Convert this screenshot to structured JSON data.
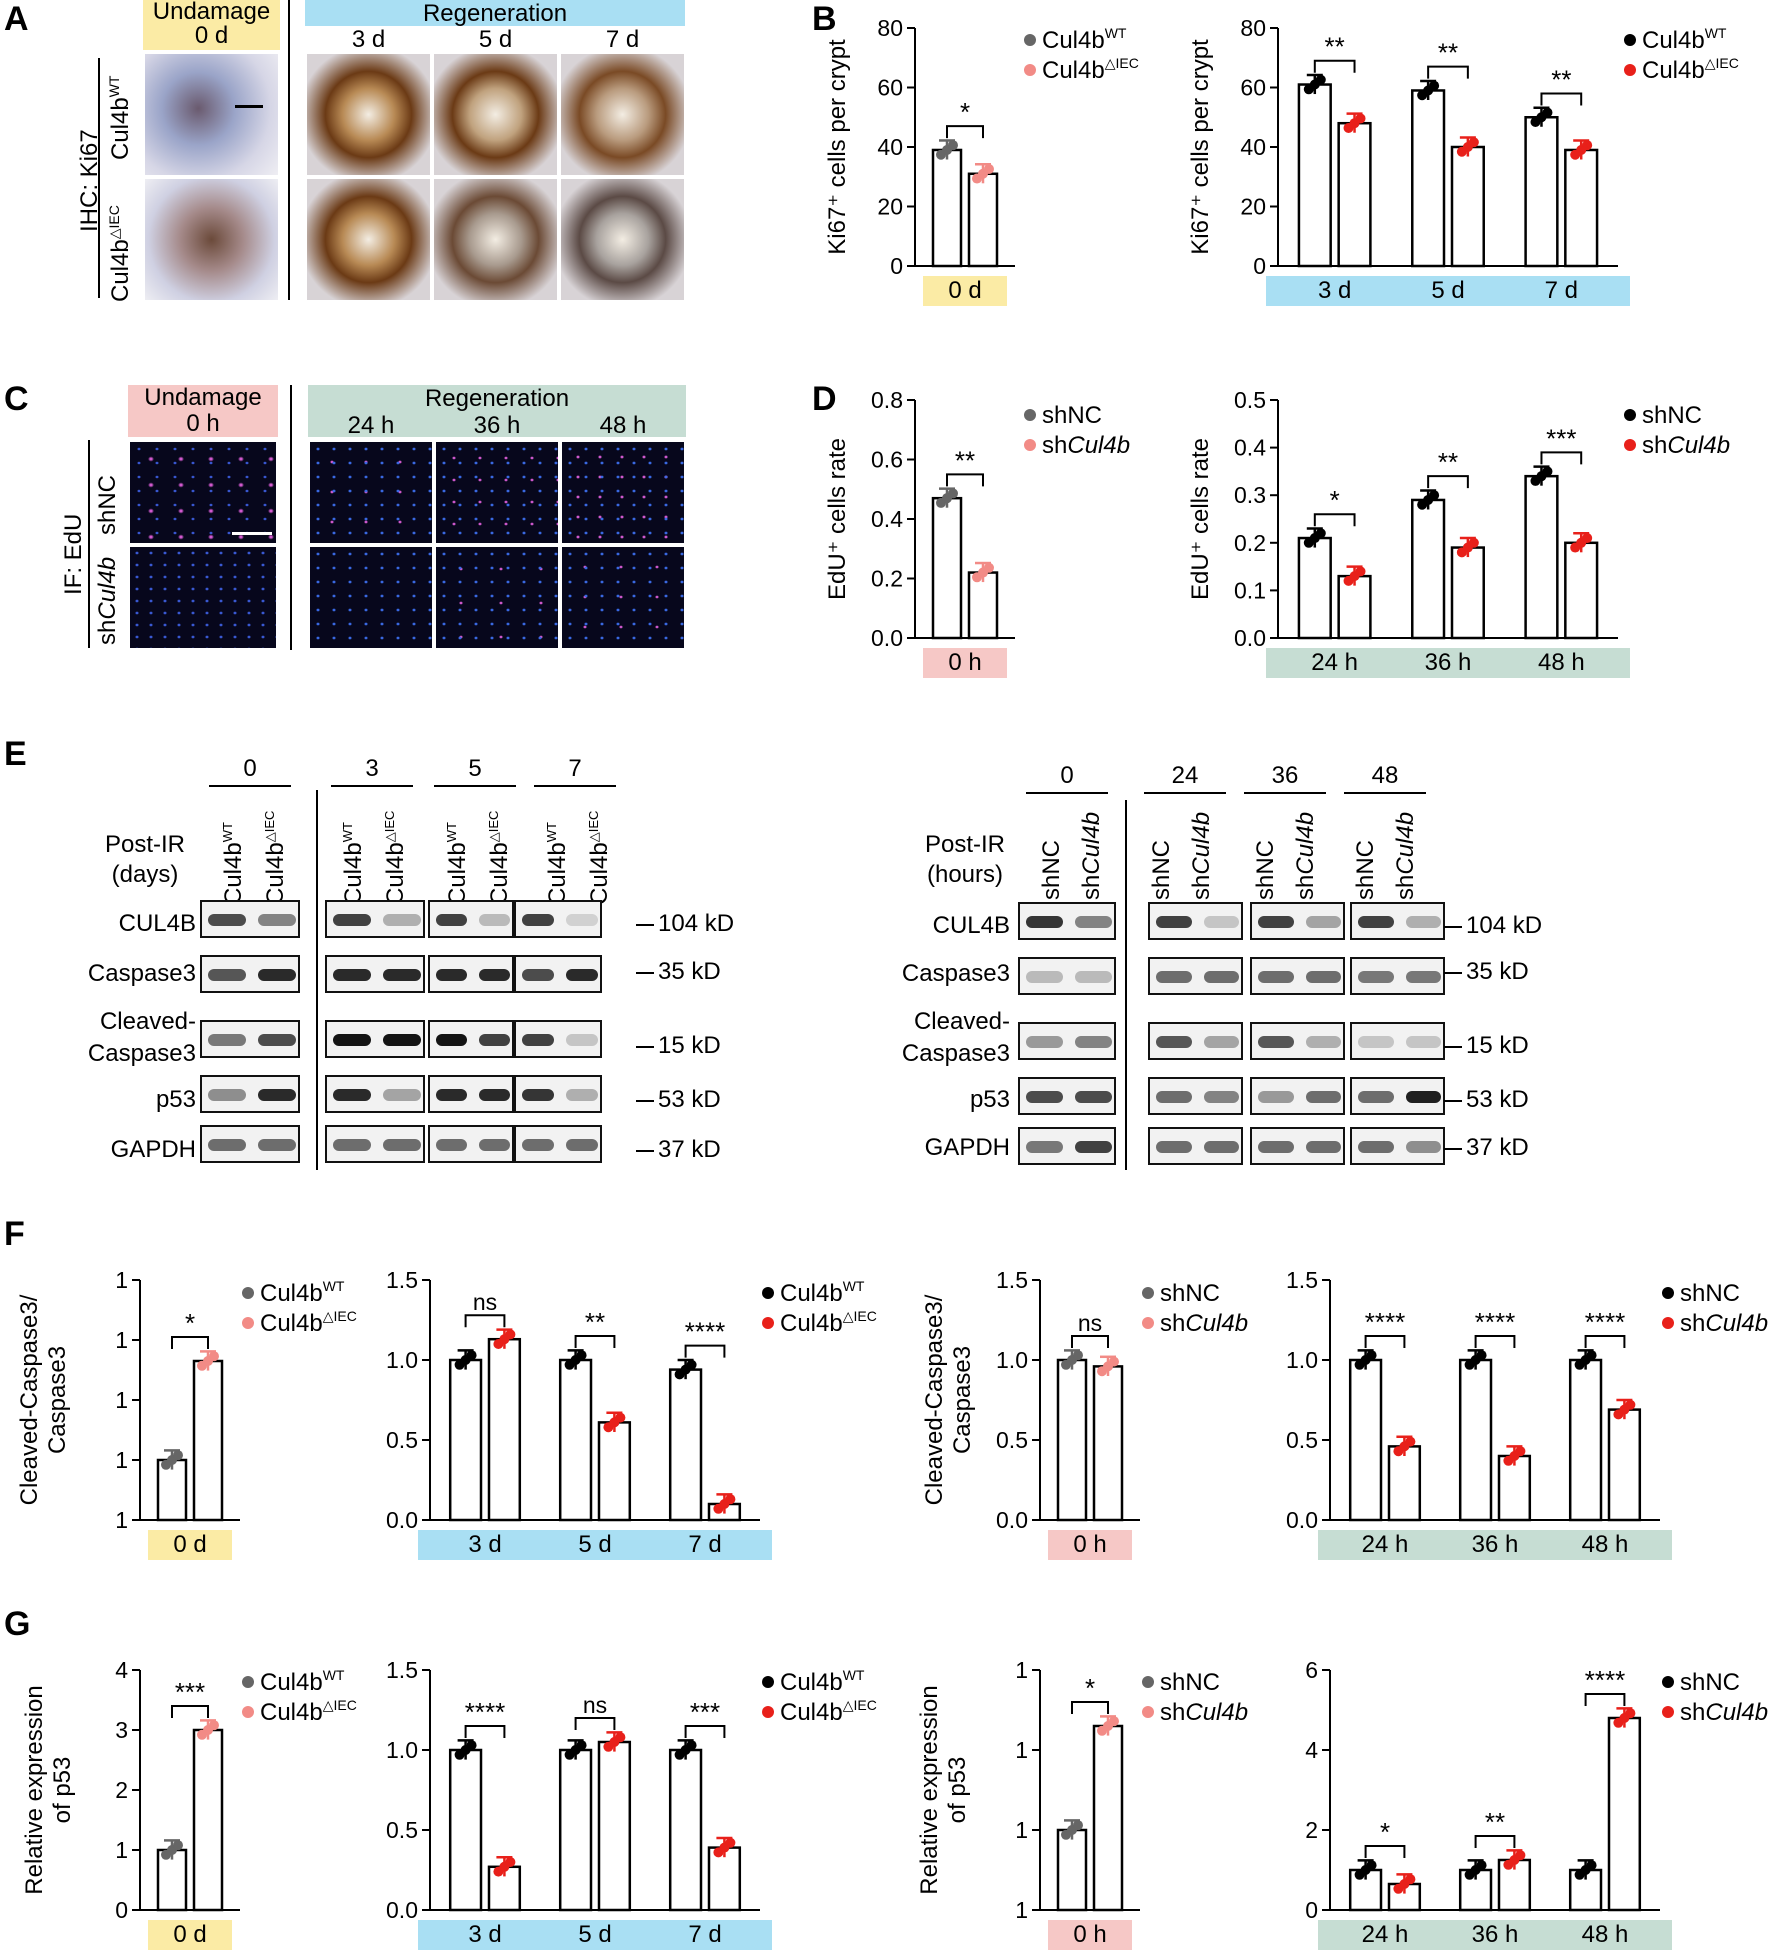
{
  "panels": {
    "A": "A",
    "B": "B",
    "C": "C",
    "D": "D",
    "E": "E",
    "F": "F",
    "G": "G"
  },
  "colors": {
    "wt": "#000000",
    "wt_light": "#666666",
    "ko": "#e8201a",
    "ko_light": "#f28b86",
    "yellow": "#fbeba5",
    "blue": "#a9dff3",
    "pink": "#f6c8c6",
    "green": "#c6ddd3"
  },
  "panel_a": {
    "left_header": "Undamage",
    "left_time": "0 d",
    "right_header": "Regeneration",
    "times": [
      "3 d",
      "5 d",
      "7 d"
    ],
    "stain": "IHC: Ki67",
    "row1": "Cul4b",
    "row1_sup": "WT",
    "row2": "Cul4b",
    "row2_sup": "△IEC"
  },
  "panel_c": {
    "left_header": "Undamage",
    "left_time": "0 h",
    "right_header": "Regeneration",
    "times": [
      "24 h",
      "36 h",
      "48 h"
    ],
    "stain": "IF: EdU",
    "row1": "shNC",
    "row2": "shCul4b"
  },
  "panel_e": {
    "left": {
      "groups": [
        "0",
        "3",
        "5",
        "7"
      ],
      "post": "Post-IR",
      "unit": "(days)",
      "lanes": [
        "Cul4b",
        "Cul4b"
      ],
      "lane_sups": [
        "WT",
        "△IEC"
      ]
    },
    "right": {
      "groups": [
        "0",
        "24",
        "36",
        "48"
      ],
      "post": "Post-IR",
      "unit": "(hours)",
      "lanes": [
        "shNC",
        "shCul4b"
      ]
    },
    "rows": [
      "CUL4B",
      "Caspase3",
      "Cleaved-",
      "Caspase3",
      "p53",
      "GAPDH"
    ],
    "kd": [
      "104 kD",
      "35 kD",
      "15 kD",
      "53 kD",
      "37 kD"
    ]
  },
  "legends": {
    "mouse": [
      "Cul4b",
      "Cul4b"
    ],
    "mouse_sups": [
      "WT",
      "△IEC"
    ],
    "cell": [
      "shNC",
      "sh",
      "Cul4b"
    ]
  },
  "chart_data": [
    {
      "id": "B1",
      "type": "bar",
      "categories": [
        "0 d"
      ],
      "ylabel": "Ki67⁺ cells per crypt",
      "ylim": [
        0,
        80
      ],
      "yticks": [
        0,
        20,
        40,
        60,
        80
      ],
      "series": [
        {
          "name": "Cul4bWT",
          "values": [
            39
          ]
        },
        {
          "name": "Cul4b△IEC",
          "values": [
            31
          ]
        }
      ],
      "sig": [
        "*"
      ]
    },
    {
      "id": "B2",
      "type": "bar",
      "categories": [
        "3 d",
        "5 d",
        "7 d"
      ],
      "ylabel": "Ki67⁺ cells per crypt",
      "ylim": [
        0,
        80
      ],
      "yticks": [
        0,
        20,
        40,
        60,
        80
      ],
      "series": [
        {
          "name": "Cul4bWT",
          "values": [
            61,
            59,
            50
          ]
        },
        {
          "name": "Cul4b△IEC",
          "values": [
            48,
            40,
            39
          ]
        }
      ],
      "sig": [
        "**",
        "**",
        "**"
      ]
    },
    {
      "id": "D1",
      "type": "bar",
      "categories": [
        "0 h"
      ],
      "ylabel": "EdU⁺ cells rate",
      "ylim": [
        0,
        0.8
      ],
      "yticks": [
        0.0,
        0.2,
        0.4,
        0.6,
        0.8
      ],
      "series": [
        {
          "name": "shNC",
          "values": [
            0.47
          ]
        },
        {
          "name": "shCul4b",
          "values": [
            0.22
          ]
        }
      ],
      "sig": [
        "**"
      ]
    },
    {
      "id": "D2",
      "type": "bar",
      "categories": [
        "24 h",
        "36 h",
        "48 h"
      ],
      "ylabel": "EdU⁺ cells rate",
      "ylim": [
        0,
        0.5
      ],
      "yticks": [
        0.0,
        0.1,
        0.2,
        0.3,
        0.4,
        0.5
      ],
      "series": [
        {
          "name": "shNC",
          "values": [
            0.21,
            0.29,
            0.34
          ]
        },
        {
          "name": "shCul4b",
          "values": [
            0.13,
            0.19,
            0.2
          ]
        }
      ],
      "sig": [
        "*",
        "**",
        "***"
      ]
    },
    {
      "id": "F1",
      "type": "bar",
      "categories": [
        "0 d"
      ],
      "ylabel": "Cleaved-Caspase3/ Caspase3",
      "ylim": [
        0.9,
        1.3
      ],
      "yticks": [
        0.9,
        1.0,
        1.1,
        1.2,
        1.3
      ],
      "series": [
        {
          "name": "Cul4bWT",
          "values": [
            1.0
          ]
        },
        {
          "name": "Cul4b△IEC",
          "values": [
            1.165
          ]
        }
      ],
      "sig": [
        "*"
      ]
    },
    {
      "id": "F2",
      "type": "bar",
      "categories": [
        "3 d",
        "5 d",
        "7 d"
      ],
      "ylim": [
        0,
        1.5
      ],
      "yticks": [
        0.0,
        0.5,
        1.0,
        1.5
      ],
      "series": [
        {
          "name": "Cul4bWT",
          "values": [
            1.0,
            1.0,
            0.94
          ]
        },
        {
          "name": "Cul4b△IEC",
          "values": [
            1.13,
            0.61,
            0.1
          ]
        }
      ],
      "sig": [
        "ns",
        "**",
        "****"
      ]
    },
    {
      "id": "F3",
      "type": "bar",
      "categories": [
        "0 h"
      ],
      "ylabel": "Cleaved-Caspase3/ Caspase3",
      "ylim": [
        0,
        1.5
      ],
      "yticks": [
        0.0,
        0.5,
        1.0,
        1.5
      ],
      "series": [
        {
          "name": "shNC",
          "values": [
            1.0
          ]
        },
        {
          "name": "shCul4b",
          "values": [
            0.96
          ]
        }
      ],
      "sig": [
        "ns"
      ]
    },
    {
      "id": "F4",
      "type": "bar",
      "categories": [
        "24 h",
        "36 h",
        "48 h"
      ],
      "ylim": [
        0,
        1.5
      ],
      "yticks": [
        0.0,
        0.5,
        1.0,
        1.5
      ],
      "series": [
        {
          "name": "shNC",
          "values": [
            1.0,
            1.0,
            1.0
          ]
        },
        {
          "name": "shCul4b",
          "values": [
            0.46,
            0.4,
            0.69
          ]
        }
      ],
      "sig": [
        "****",
        "****",
        "****"
      ]
    },
    {
      "id": "G1",
      "type": "bar",
      "categories": [
        "0 d"
      ],
      "ylabel": "Relative expression of p53",
      "ylim": [
        0,
        4
      ],
      "yticks": [
        0,
        1,
        2,
        3,
        4
      ],
      "series": [
        {
          "name": "Cul4bWT",
          "values": [
            1.0
          ]
        },
        {
          "name": "Cul4b△IEC",
          "values": [
            3.0
          ]
        }
      ],
      "sig": [
        "***"
      ]
    },
    {
      "id": "G2",
      "type": "bar",
      "categories": [
        "3 d",
        "5 d",
        "7 d"
      ],
      "ylim": [
        0,
        1.5
      ],
      "yticks": [
        0.0,
        0.5,
        1.0,
        1.5
      ],
      "series": [
        {
          "name": "Cul4bWT",
          "values": [
            1.0,
            1.0,
            1.0
          ]
        },
        {
          "name": "Cul4b△IEC",
          "values": [
            0.27,
            1.05,
            0.39
          ]
        }
      ],
      "sig": [
        "****",
        "ns",
        "***"
      ]
    },
    {
      "id": "G3",
      "type": "bar",
      "categories": [
        "0 h"
      ],
      "ylabel": "Relative expression of p53",
      "ylim": [
        0.8,
        1.4
      ],
      "yticks": [
        0.8,
        1.0,
        1.2,
        1.4
      ],
      "series": [
        {
          "name": "shNC",
          "values": [
            1.0
          ]
        },
        {
          "name": "shCul4b",
          "values": [
            1.26
          ]
        }
      ],
      "sig": [
        "*"
      ]
    },
    {
      "id": "G4",
      "type": "bar",
      "categories": [
        "24 h",
        "36 h",
        "48 h"
      ],
      "ylim": [
        0,
        6
      ],
      "yticks": [
        0,
        2,
        4,
        6
      ],
      "series": [
        {
          "name": "shNC",
          "values": [
            1.0,
            1.0,
            1.0
          ]
        },
        {
          "name": "shCul4b",
          "values": [
            0.65,
            1.25,
            4.8
          ]
        }
      ],
      "sig": [
        "*",
        "**",
        "****"
      ]
    }
  ]
}
